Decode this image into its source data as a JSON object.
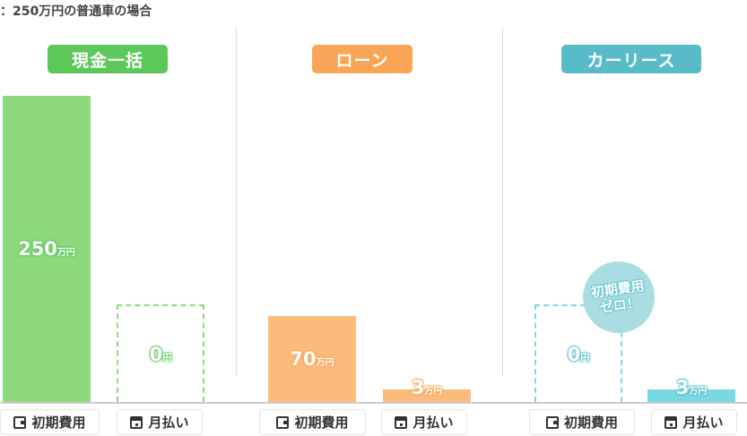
{
  "caption": "：250万円の普通車の場合",
  "colors": {
    "cash": "#5cc85a",
    "cash_bar": "#8ed97d",
    "loan": "#f9a557",
    "loan_bar": "#fbbb7d",
    "lease": "#58bcc8",
    "lease_bar": "#79d9e3"
  },
  "badge": {
    "line1": "初期費用",
    "line2": "ゼロ！"
  },
  "labels": {
    "initial": "初期費用",
    "monthly": "月払い"
  },
  "icons": {
    "initial": "wallet-icon",
    "monthly": "calendar-icon"
  },
  "chart_data": {
    "type": "bar",
    "unit": "万円",
    "groups": [
      {
        "name": "現金一括",
        "bars": [
          {
            "category": "初期費用",
            "value": 250,
            "label": "250",
            "unit": "万円"
          },
          {
            "category": "月払い",
            "value": 0,
            "label": "0",
            "unit": "円"
          }
        ]
      },
      {
        "name": "ローン",
        "bars": [
          {
            "category": "初期費用",
            "value": 70,
            "label": "70",
            "unit": "万円"
          },
          {
            "category": "月払い",
            "value": 3,
            "label": "3",
            "unit": "万円"
          }
        ]
      },
      {
        "name": "カーリース",
        "bars": [
          {
            "category": "初期費用",
            "value": 0,
            "label": "0",
            "unit": "円"
          },
          {
            "category": "月払い",
            "value": 3,
            "label": "3",
            "unit": "万円"
          }
        ]
      }
    ]
  }
}
